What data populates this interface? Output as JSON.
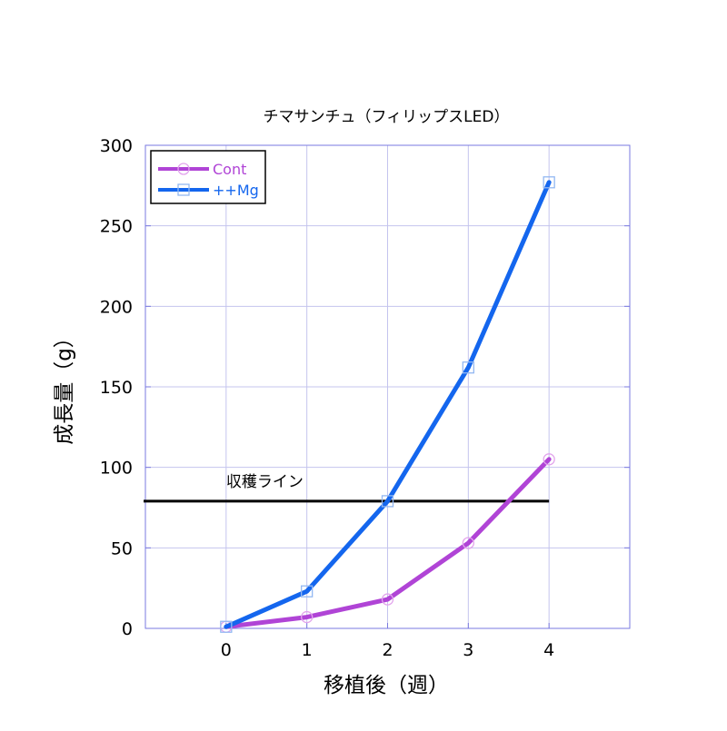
{
  "chart_data": {
    "type": "line",
    "title": "チマサンチュ（フィリップスLED）",
    "xlabel": "移植後（週）",
    "ylabel": "成長量（g）",
    "xlim": [
      -1,
      5
    ],
    "ylim": [
      0,
      300
    ],
    "xticks": [
      0,
      1,
      2,
      3,
      4
    ],
    "yticks": [
      0,
      50,
      100,
      150,
      200,
      250,
      300
    ],
    "grid": true,
    "legend_position": "top-left",
    "x": [
      0,
      1,
      2,
      3,
      4
    ],
    "series": [
      {
        "name": "Cont",
        "values": [
          1,
          7,
          18,
          53,
          105
        ],
        "color": "#b044d6",
        "marker": "circle"
      },
      {
        "name": "++Mg",
        "values": [
          1,
          23,
          79,
          162,
          277
        ],
        "color": "#1466ee",
        "marker": "square"
      }
    ],
    "annotations": [
      {
        "text": "収穫ライン",
        "x": 0,
        "y": 88
      }
    ],
    "reference_lines": [
      {
        "name": "収穫ライン",
        "y": 79,
        "x_start": -1,
        "x_end": 4,
        "color": "#000000"
      }
    ]
  }
}
